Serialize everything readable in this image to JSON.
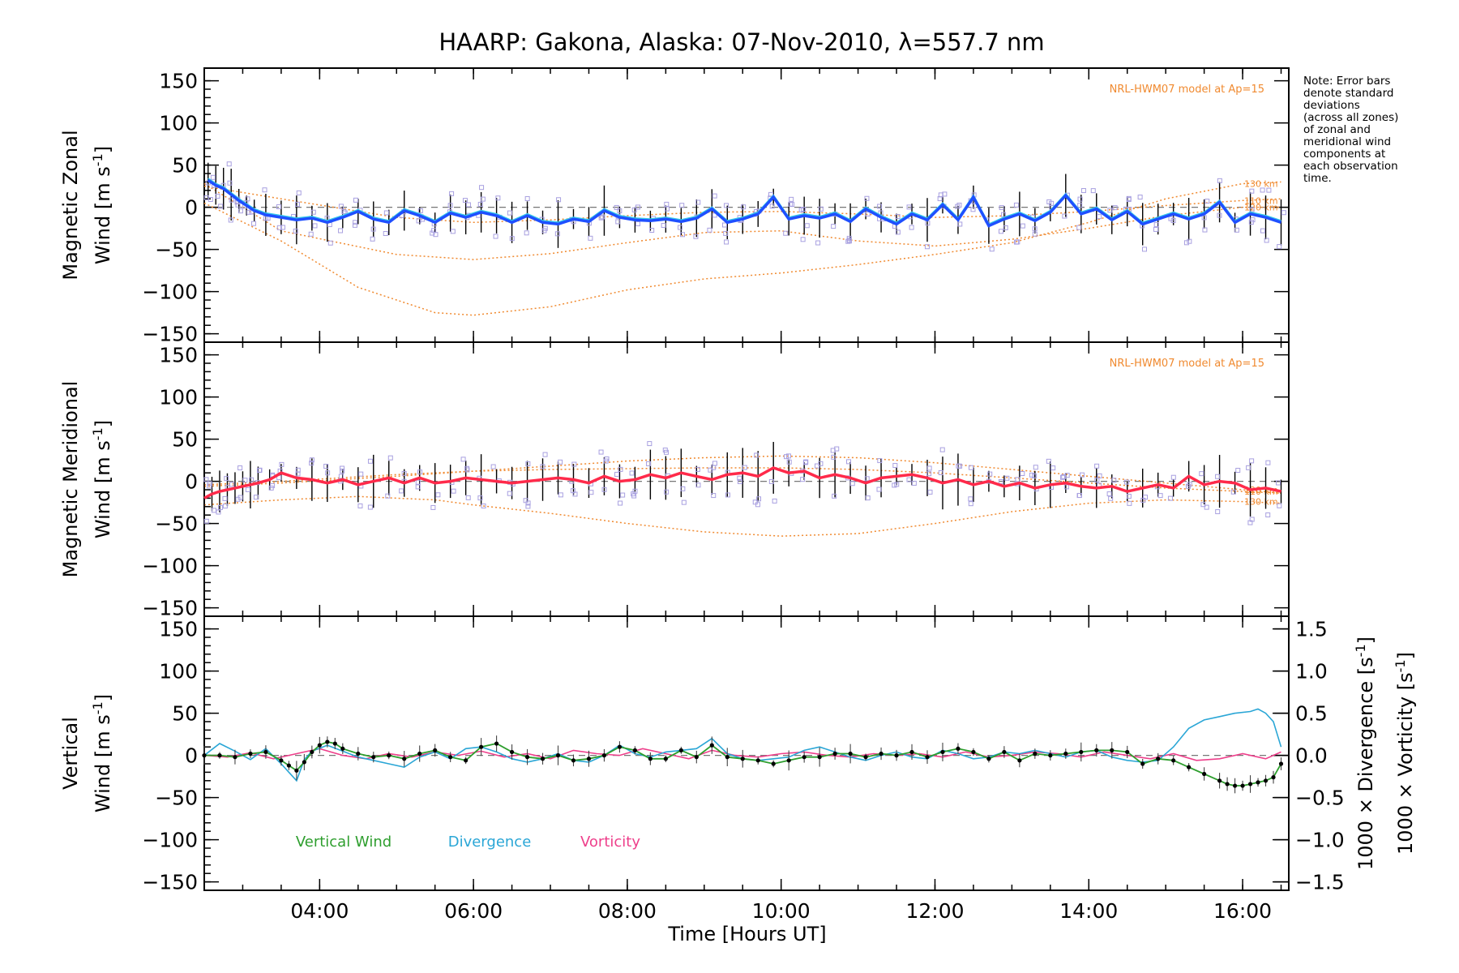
{
  "title": "HAARP: Gakona,  Alaska: 07-Nov-2010, λ=557.7 nm",
  "note": [
    "Note: Error bars",
    "denote standard",
    "deviations",
    "(across all zones)",
    "of zonal and",
    "meridional wind",
    "components at",
    "each observation",
    "time."
  ],
  "xlabel": "Time [Hours UT]",
  "colors": {
    "zonal": "#1f4fff",
    "zonal_alt": "#33c7e8",
    "meridional": "#ff2a4a",
    "vertical": "#2e9e2e",
    "divergence": "#2aa6d6",
    "vorticity": "#ee3f8b",
    "model": "#f08a30",
    "scatter": "#a8a0e0"
  },
  "chart_data": [
    {
      "type": "line",
      "panel": "zonal",
      "ylabel_line1": "Magnetic Zonal",
      "ylabel_line2": "Wind [m s",
      "ylabel_sup": "-1",
      "ylabel_close": "]",
      "ylim": [
        -160,
        165
      ],
      "yticks": [
        150,
        100,
        50,
        0,
        -50,
        -100,
        -150
      ],
      "yticklabels": [
        "150",
        "100",
        "50",
        "0",
        "−50",
        "−100",
        "−150"
      ],
      "model_label": "NRL-HWM07 model at Ap=15",
      "altitude_labels": [
        "110 km",
        "120 km",
        "130 km"
      ],
      "series": [
        {
          "x": [
            2.55,
            2.65,
            2.75,
            2.85,
            2.95,
            3.05,
            3.15,
            3.3,
            3.5,
            3.7,
            3.9,
            4.1,
            4.3,
            4.5,
            4.7,
            4.9,
            5.1,
            5.3,
            5.5,
            5.7,
            5.9,
            6.1,
            6.3,
            6.5,
            6.7,
            6.9,
            7.1,
            7.3,
            7.5,
            7.7,
            7.9,
            8.1,
            8.3,
            8.5,
            8.7,
            8.9,
            9.1,
            9.3,
            9.5,
            9.7,
            9.9,
            10.1,
            10.3,
            10.5,
            10.7,
            10.9,
            11.1,
            11.3,
            11.5,
            11.7,
            11.9,
            12.1,
            12.3,
            12.5,
            12.7,
            12.9,
            13.1,
            13.3,
            13.5,
            13.7,
            13.9,
            14.1,
            14.3,
            14.5,
            14.7,
            14.9,
            15.1,
            15.3,
            15.5,
            15.7,
            15.9,
            16.1,
            16.3,
            16.5
          ],
          "y": [
            32,
            26,
            22,
            15,
            8,
            2,
            -4,
            -9,
            -12,
            -15,
            -13,
            -18,
            -12,
            -5,
            -14,
            -18,
            -4,
            -10,
            -18,
            -7,
            -12,
            -6,
            -10,
            -18,
            -10,
            -18,
            -20,
            -14,
            -17,
            -4,
            -12,
            -15,
            -16,
            -14,
            -17,
            -13,
            -2,
            -18,
            -14,
            -8,
            12,
            -14,
            -10,
            -13,
            -8,
            -17,
            -2,
            -12,
            -20,
            -8,
            -15,
            3,
            -15,
            12,
            -22,
            -14,
            -8,
            -16,
            -6,
            14,
            -8,
            -2,
            -15,
            -5,
            -20,
            -14,
            -8,
            -14,
            -8,
            6,
            -18,
            -8,
            -12,
            -18
          ]
        }
      ],
      "model_curves": [
        {
          "x": [
            2.5,
            3.5,
            5.0,
            6.0,
            7.0,
            8.0,
            9.0,
            10.0,
            11.0,
            12.0,
            13.0,
            14.0,
            15.0,
            16.0,
            16.5
          ],
          "y": [
            25,
            10,
            -12,
            -18,
            -15,
            -10,
            -6,
            -5,
            -8,
            -12,
            -10,
            -5,
            2,
            8,
            10
          ]
        },
        {
          "x": [
            2.5,
            3.5,
            5.0,
            6.0,
            7.0,
            8.0,
            9.0,
            10.0,
            11.0,
            12.0,
            13.0,
            14.0,
            15.0,
            16.0,
            16.5
          ],
          "y": [
            28,
            -28,
            -56,
            -62,
            -55,
            -42,
            -30,
            -28,
            -40,
            -46,
            -38,
            -25,
            -10,
            0,
            0
          ]
        },
        {
          "x": [
            2.5,
            3.5,
            4.5,
            5.5,
            6.0,
            7.0,
            8.0,
            9.0,
            10.0,
            11.0,
            12.0,
            13.0,
            14.0,
            15.0,
            16.0,
            16.5
          ],
          "y": [
            5,
            -40,
            -95,
            -125,
            -128,
            -118,
            -98,
            -85,
            -78,
            -68,
            -56,
            -42,
            -18,
            10,
            28,
            30
          ]
        }
      ]
    },
    {
      "type": "line",
      "panel": "meridional",
      "ylabel_line1": "Magnetic Meridional",
      "ylabel_line2": "Wind [m s",
      "ylabel_sup": "-1",
      "ylabel_close": "]",
      "ylim": [
        -160,
        165
      ],
      "yticks": [
        150,
        100,
        50,
        0,
        -50,
        -100,
        -150
      ],
      "yticklabels": [
        "150",
        "100",
        "50",
        "0",
        "−50",
        "−100",
        "−150"
      ],
      "model_label": "NRL-HWM07 model at Ap=15",
      "altitude_labels": [
        "110 km",
        "120 km",
        "130 km"
      ],
      "series": [
        {
          "x": [
            2.5,
            2.6,
            2.7,
            2.8,
            2.9,
            3.0,
            3.1,
            3.2,
            3.35,
            3.5,
            3.7,
            3.9,
            4.1,
            4.3,
            4.5,
            4.7,
            4.9,
            5.1,
            5.3,
            5.5,
            5.7,
            5.9,
            6.1,
            6.3,
            6.5,
            6.7,
            6.9,
            7.1,
            7.3,
            7.5,
            7.7,
            7.9,
            8.1,
            8.3,
            8.5,
            8.7,
            8.9,
            9.1,
            9.3,
            9.5,
            9.7,
            9.9,
            10.1,
            10.3,
            10.5,
            10.7,
            10.9,
            11.1,
            11.3,
            11.5,
            11.7,
            11.9,
            12.1,
            12.3,
            12.5,
            12.7,
            12.9,
            13.1,
            13.3,
            13.5,
            13.7,
            13.9,
            14.1,
            14.3,
            14.5,
            14.7,
            14.9,
            15.1,
            15.3,
            15.5,
            15.7,
            15.9,
            16.1,
            16.3,
            16.5
          ],
          "y": [
            -20,
            -15,
            -12,
            -10,
            -8,
            -6,
            -4,
            -2,
            2,
            10,
            4,
            2,
            -2,
            2,
            -4,
            0,
            4,
            -2,
            4,
            -2,
            0,
            4,
            2,
            0,
            -2,
            0,
            2,
            4,
            2,
            -2,
            6,
            0,
            2,
            8,
            4,
            10,
            6,
            2,
            8,
            10,
            6,
            16,
            10,
            12,
            4,
            8,
            4,
            -2,
            4,
            6,
            8,
            4,
            -2,
            2,
            -4,
            0,
            -6,
            -2,
            -8,
            -4,
            -2,
            -6,
            -8,
            -6,
            -12,
            -8,
            -4,
            -8,
            6,
            -4,
            0,
            -2,
            -10,
            -8,
            -12
          ]
        }
      ],
      "model_curves": [
        {
          "x": [
            2.5,
            3.5,
            5.0,
            6.0,
            7.0,
            8.0,
            9.0,
            10.0,
            11.0,
            12.0,
            13.0,
            14.0,
            15.0,
            16.0,
            16.5
          ],
          "y": [
            -4,
            0,
            8,
            12,
            14,
            15,
            16,
            16,
            14,
            10,
            4,
            -2,
            -8,
            -12,
            -14
          ]
        },
        {
          "x": [
            2.5,
            3.5,
            5.0,
            6.0,
            7.0,
            8.0,
            9.0,
            10.0,
            11.0,
            12.0,
            13.0,
            14.0,
            15.0,
            16.0,
            16.5
          ],
          "y": [
            -6,
            -2,
            6,
            12,
            18,
            24,
            28,
            30,
            28,
            22,
            14,
            6,
            -2,
            -10,
            -14
          ]
        },
        {
          "x": [
            2.5,
            3.5,
            4.5,
            5.5,
            6.0,
            7.0,
            8.0,
            9.0,
            10.0,
            11.0,
            12.0,
            13.0,
            14.0,
            15.0,
            16.0,
            16.5
          ],
          "y": [
            -28,
            -22,
            -18,
            -22,
            -28,
            -38,
            -50,
            -60,
            -65,
            -62,
            -50,
            -36,
            -26,
            -22,
            -24,
            -26
          ]
        }
      ]
    },
    {
      "type": "line",
      "panel": "vertical",
      "ylabel_line1": "Vertical",
      "ylabel_line2": "Wind [m s",
      "ylabel_sup": "-1",
      "ylabel_close": "]",
      "ylim": [
        -160,
        165
      ],
      "yticks": [
        150,
        100,
        50,
        0,
        -50,
        -100,
        -150
      ],
      "yticklabels": [
        "150",
        "100",
        "50",
        "0",
        "−50",
        "−100",
        "−150"
      ],
      "y2lim": [
        -1.6,
        1.65
      ],
      "y2ticks": [
        1.5,
        1.0,
        0.5,
        0.0,
        -0.5,
        -1.0,
        -1.5
      ],
      "y2ticklabels": [
        "1.5",
        "1.0",
        "0.5",
        "0.0",
        "−0.5",
        "−1.0",
        "−1.5"
      ],
      "y2label_div": "1000 × Divergence [s",
      "y2label_vor": "1000 × Vorticity [s",
      "y2label_sup": "-1",
      "y2label_close": "]",
      "xlim": [
        2.5,
        16.6
      ],
      "xticks": [
        4,
        6,
        8,
        10,
        12,
        14,
        16
      ],
      "xticklabels": [
        "04:00",
        "06:00",
        "08:00",
        "10:00",
        "12:00",
        "14:00",
        "16:00"
      ],
      "legend": [
        "Vertical Wind",
        "Divergence",
        "Vorticity"
      ],
      "series": [
        {
          "name": "Vertical Wind",
          "x": [
            2.5,
            2.7,
            2.9,
            3.1,
            3.3,
            3.5,
            3.6,
            3.7,
            3.8,
            3.9,
            4.0,
            4.1,
            4.2,
            4.3,
            4.5,
            4.7,
            4.9,
            5.1,
            5.3,
            5.5,
            5.7,
            5.9,
            6.1,
            6.3,
            6.5,
            6.7,
            6.9,
            7.1,
            7.3,
            7.5,
            7.7,
            7.9,
            8.1,
            8.3,
            8.5,
            8.7,
            8.9,
            9.1,
            9.3,
            9.5,
            9.7,
            9.9,
            10.1,
            10.3,
            10.5,
            10.7,
            10.9,
            11.1,
            11.3,
            11.5,
            11.7,
            11.9,
            12.1,
            12.3,
            12.5,
            12.7,
            12.9,
            13.1,
            13.3,
            13.5,
            13.7,
            13.9,
            14.1,
            14.3,
            14.5,
            14.7,
            14.9,
            15.1,
            15.3,
            15.5,
            15.7,
            15.8,
            15.9,
            16.0,
            16.1,
            16.2,
            16.3,
            16.4,
            16.5
          ],
          "y": [
            0,
            0,
            -2,
            2,
            4,
            -6,
            -12,
            -18,
            -8,
            4,
            12,
            16,
            14,
            8,
            2,
            -2,
            0,
            -4,
            2,
            6,
            -2,
            -6,
            10,
            14,
            4,
            -2,
            -4,
            0,
            -6,
            -4,
            0,
            10,
            6,
            -4,
            -4,
            6,
            -2,
            12,
            -2,
            -4,
            -6,
            -10,
            -6,
            -2,
            -2,
            2,
            2,
            -2,
            2,
            0,
            4,
            -2,
            4,
            8,
            4,
            -4,
            4,
            -6,
            2,
            0,
            2,
            4,
            6,
            6,
            4,
            -10,
            -4,
            -6,
            -14,
            -22,
            -30,
            -34,
            -36,
            -36,
            -34,
            -32,
            -30,
            -26,
            -10
          ]
        },
        {
          "name": "Divergence",
          "x": [
            2.5,
            2.7,
            2.9,
            3.1,
            3.3,
            3.5,
            3.6,
            3.7,
            3.8,
            3.9,
            4.1,
            4.3,
            4.5,
            4.7,
            4.9,
            5.1,
            5.3,
            5.5,
            5.7,
            5.9,
            6.1,
            6.3,
            6.5,
            6.7,
            6.9,
            7.1,
            7.3,
            7.5,
            7.7,
            7.9,
            8.1,
            8.3,
            8.5,
            8.7,
            8.9,
            9.1,
            9.3,
            9.5,
            9.7,
            9.9,
            10.1,
            10.3,
            10.5,
            10.7,
            10.9,
            11.1,
            11.3,
            11.5,
            11.7,
            11.9,
            12.1,
            12.3,
            12.5,
            12.7,
            12.9,
            13.1,
            13.3,
            13.5,
            13.7,
            13.9,
            14.1,
            14.3,
            14.5,
            14.7,
            14.9,
            15.1,
            15.3,
            15.5,
            15.7,
            15.9,
            16.1,
            16.2,
            16.3,
            16.4,
            16.5
          ],
          "y": [
            0.0,
            0.14,
            0.05,
            -0.05,
            0.08,
            -0.1,
            -0.2,
            -0.3,
            -0.05,
            0.05,
            0.12,
            0.05,
            -0.02,
            -0.06,
            -0.1,
            -0.14,
            -0.02,
            0.04,
            -0.04,
            0.08,
            0.1,
            0.04,
            -0.04,
            -0.08,
            -0.04,
            0.02,
            -0.06,
            -0.08,
            0.0,
            0.12,
            0.02,
            -0.02,
            0.04,
            0.06,
            0.08,
            0.2,
            0.02,
            -0.04,
            -0.06,
            -0.04,
            -0.02,
            0.06,
            0.1,
            0.04,
            -0.02,
            -0.06,
            0.0,
            0.04,
            -0.02,
            -0.04,
            0.06,
            0.02,
            -0.04,
            -0.02,
            0.04,
            0.02,
            0.06,
            0.02,
            -0.02,
            0.04,
            0.06,
            -0.02,
            -0.06,
            -0.08,
            -0.06,
            0.1,
            0.32,
            0.42,
            0.46,
            0.5,
            0.52,
            0.55,
            0.5,
            0.4,
            0.1
          ]
        },
        {
          "name": "Vorticity",
          "x": [
            2.5,
            2.8,
            3.1,
            3.4,
            3.7,
            4.0,
            4.3,
            4.6,
            4.9,
            5.2,
            5.5,
            5.8,
            6.1,
            6.4,
            6.7,
            7.0,
            7.3,
            7.6,
            7.9,
            8.2,
            8.5,
            8.8,
            9.1,
            9.4,
            9.7,
            10.0,
            10.3,
            10.6,
            10.9,
            11.2,
            11.5,
            11.8,
            12.1,
            12.4,
            12.7,
            13.0,
            13.3,
            13.6,
            13.9,
            14.2,
            14.5,
            14.8,
            15.1,
            15.4,
            15.7,
            16.0,
            16.3,
            16.5
          ],
          "y": [
            0.0,
            -0.02,
            0.03,
            -0.04,
            0.02,
            0.08,
            0.0,
            -0.04,
            0.02,
            -0.02,
            0.04,
            0.0,
            0.05,
            -0.02,
            0.02,
            -0.04,
            0.06,
            0.02,
            0.0,
            0.08,
            0.02,
            -0.04,
            0.06,
            0.0,
            -0.02,
            0.02,
            0.04,
            0.0,
            -0.02,
            0.02,
            0.0,
            0.02,
            -0.02,
            0.04,
            -0.02,
            0.0,
            0.04,
            0.02,
            -0.02,
            0.04,
            0.0,
            -0.04,
            0.02,
            -0.06,
            -0.04,
            0.02,
            -0.04,
            0.04
          ]
        }
      ]
    }
  ]
}
